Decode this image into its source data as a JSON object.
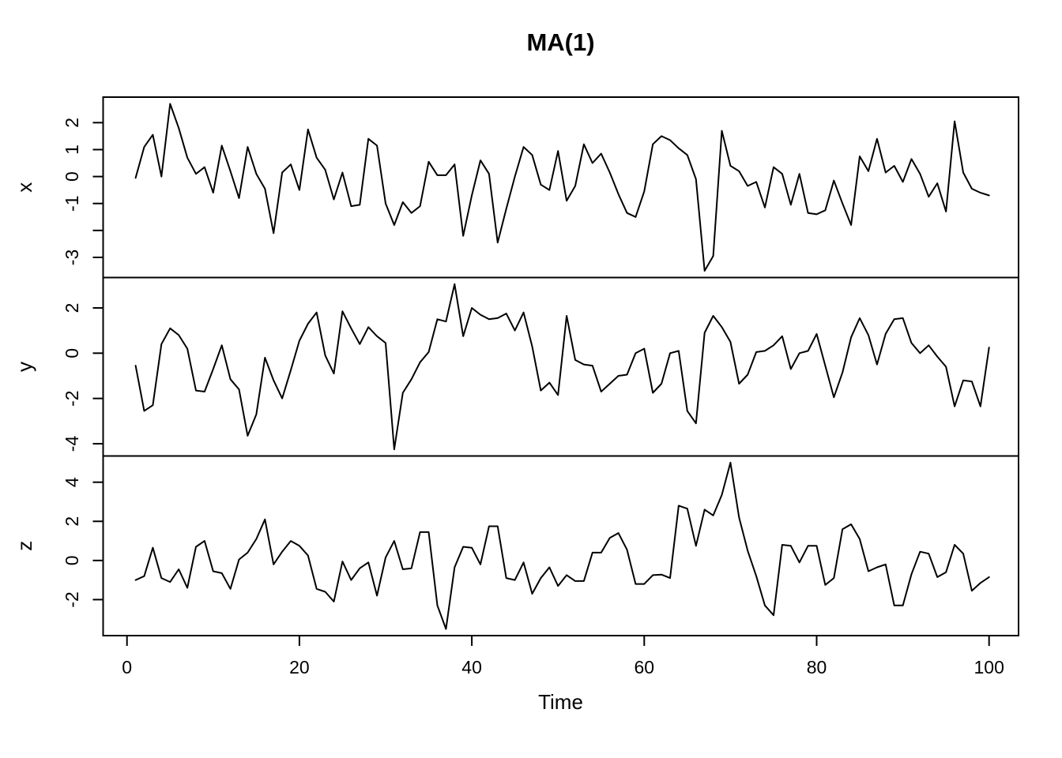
{
  "figure": {
    "background": "#ffffff",
    "stroke_color": "#000000"
  },
  "chart_data": {
    "type": "line",
    "title": "MA(1)",
    "xlabel": "Time",
    "layout_hint": "three stacked time-series panels sharing one time axis, black line on white, full box frame per panel, y tick labels rotated 90deg",
    "x_axis": {
      "range": [
        1,
        100
      ],
      "ticks": [
        0,
        20,
        40,
        60,
        80,
        100
      ]
    },
    "panels": [
      {
        "name": "x",
        "yticks": [
          {
            "v": 2,
            "label": "2"
          },
          {
            "v": 1,
            "label": "1"
          },
          {
            "v": 0,
            "label": "0"
          },
          {
            "v": -1,
            "label": "-1"
          },
          {
            "v": -2,
            "label": ""
          },
          {
            "v": -3,
            "label": "-3"
          }
        ],
        "values": [
          -0.05,
          1.1,
          1.55,
          0,
          2.7,
          1.8,
          0.7,
          0.1,
          0.35,
          -0.6,
          1.15,
          0.2,
          -0.8,
          1.1,
          0.1,
          -0.45,
          -2.1,
          0.15,
          0.45,
          -0.5,
          1.75,
          0.7,
          0.25,
          -0.85,
          0.15,
          -1.1,
          -1.05,
          1.4,
          1.15,
          -1,
          -1.8,
          -0.95,
          -1.35,
          -1.1,
          0.55,
          0.05,
          0.05,
          0.45,
          -2.2,
          -0.7,
          0.6,
          0.1,
          -2.45,
          -1.2,
          0,
          1.1,
          0.8,
          -0.3,
          -0.5,
          0.95,
          -0.9,
          -0.35,
          1.2,
          0.5,
          0.85,
          0.15,
          -0.65,
          -1.35,
          -1.5,
          -0.55,
          1.2,
          1.5,
          1.35,
          1.05,
          0.8,
          -0.1,
          -3.5,
          -2.95,
          1.7,
          0.4,
          0.2,
          -0.35,
          -0.2,
          -1.15,
          0.35,
          0.1,
          -1.05,
          0.1,
          -1.35,
          -1.4,
          -1.25,
          -0.15,
          -1,
          -1.8,
          0.75,
          0.2,
          1.4,
          0.15,
          0.4,
          -0.2,
          0.65,
          0.1,
          -0.75,
          -0.25,
          -1.3,
          2.05,
          0.15,
          -0.45,
          -0.6,
          -0.7
        ]
      },
      {
        "name": "y",
        "yticks": [
          {
            "v": 2,
            "label": "2"
          },
          {
            "v": 0,
            "label": "0"
          },
          {
            "v": -2,
            "label": "-2"
          },
          {
            "v": -4,
            "label": "-4"
          }
        ],
        "values": [
          -0.55,
          -2.55,
          -2.3,
          0.4,
          1.1,
          0.8,
          0.2,
          -1.65,
          -1.7,
          -0.7,
          0.35,
          -1.15,
          -1.6,
          -3.65,
          -2.7,
          -0.2,
          -1.2,
          -2,
          -0.75,
          0.55,
          1.3,
          1.8,
          -0.1,
          -0.9,
          1.85,
          1.1,
          0.4,
          1.15,
          0.75,
          0.45,
          -4.25,
          -1.75,
          -1.15,
          -0.4,
          0.05,
          1.5,
          1.4,
          3.05,
          0.75,
          2,
          1.7,
          1.5,
          1.55,
          1.75,
          1,
          1.8,
          0.3,
          -1.65,
          -1.3,
          -1.85,
          1.65,
          -0.3,
          -0.5,
          -0.55,
          -1.7,
          -1.35,
          -1,
          -0.95,
          0,
          0.2,
          -1.75,
          -1.35,
          0,
          0.1,
          -2.55,
          -3.1,
          0.9,
          1.65,
          1.15,
          0.5,
          -1.35,
          -0.95,
          0.05,
          0.1,
          0.35,
          0.75,
          -0.7,
          0,
          0.1,
          0.85,
          -0.55,
          -1.95,
          -0.85,
          0.7,
          1.55,
          0.8,
          -0.5,
          0.85,
          1.5,
          1.55,
          0.45,
          0,
          0.35,
          -0.15,
          -0.6,
          -2.35,
          -1.2,
          -1.25,
          -2.35,
          0.25
        ]
      },
      {
        "name": "z",
        "yticks": [
          {
            "v": 4,
            "label": "4"
          },
          {
            "v": 2,
            "label": "2"
          },
          {
            "v": 0,
            "label": "0"
          },
          {
            "v": -2,
            "label": "-2"
          }
        ],
        "values": [
          -1,
          -0.8,
          0.65,
          -0.9,
          -1.1,
          -0.45,
          -1.4,
          0.7,
          1,
          -0.55,
          -0.65,
          -1.45,
          0.05,
          0.4,
          1.1,
          2.1,
          -0.2,
          0.45,
          1,
          0.75,
          0.25,
          -1.45,
          -1.6,
          -2.1,
          -0.05,
          -1,
          -0.4,
          -0.1,
          -1.8,
          0.15,
          1,
          -0.45,
          -0.4,
          1.45,
          1.45,
          -2.3,
          -3.5,
          -0.35,
          0.7,
          0.65,
          -0.2,
          1.75,
          1.75,
          -0.9,
          -1,
          -0.1,
          -1.7,
          -0.9,
          -0.35,
          -1.3,
          -0.75,
          -1.05,
          -1.05,
          0.4,
          0.4,
          1.15,
          1.4,
          0.55,
          -1.2,
          -1.2,
          -0.75,
          -0.72,
          -0.9,
          2.8,
          2.65,
          0.75,
          2.6,
          2.3,
          3.35,
          5,
          2.2,
          0.5,
          -0.8,
          -2.3,
          -2.8,
          0.8,
          0.75,
          -0.1,
          0.75,
          0.75,
          -1.25,
          -0.9,
          1.6,
          1.85,
          1.1,
          -0.55,
          -0.35,
          -0.2,
          -2.3,
          -2.3,
          -0.7,
          0.45,
          0.35,
          -0.85,
          -0.6,
          0.8,
          0.35,
          -1.55,
          -1.15,
          -0.85
        ]
      }
    ]
  }
}
